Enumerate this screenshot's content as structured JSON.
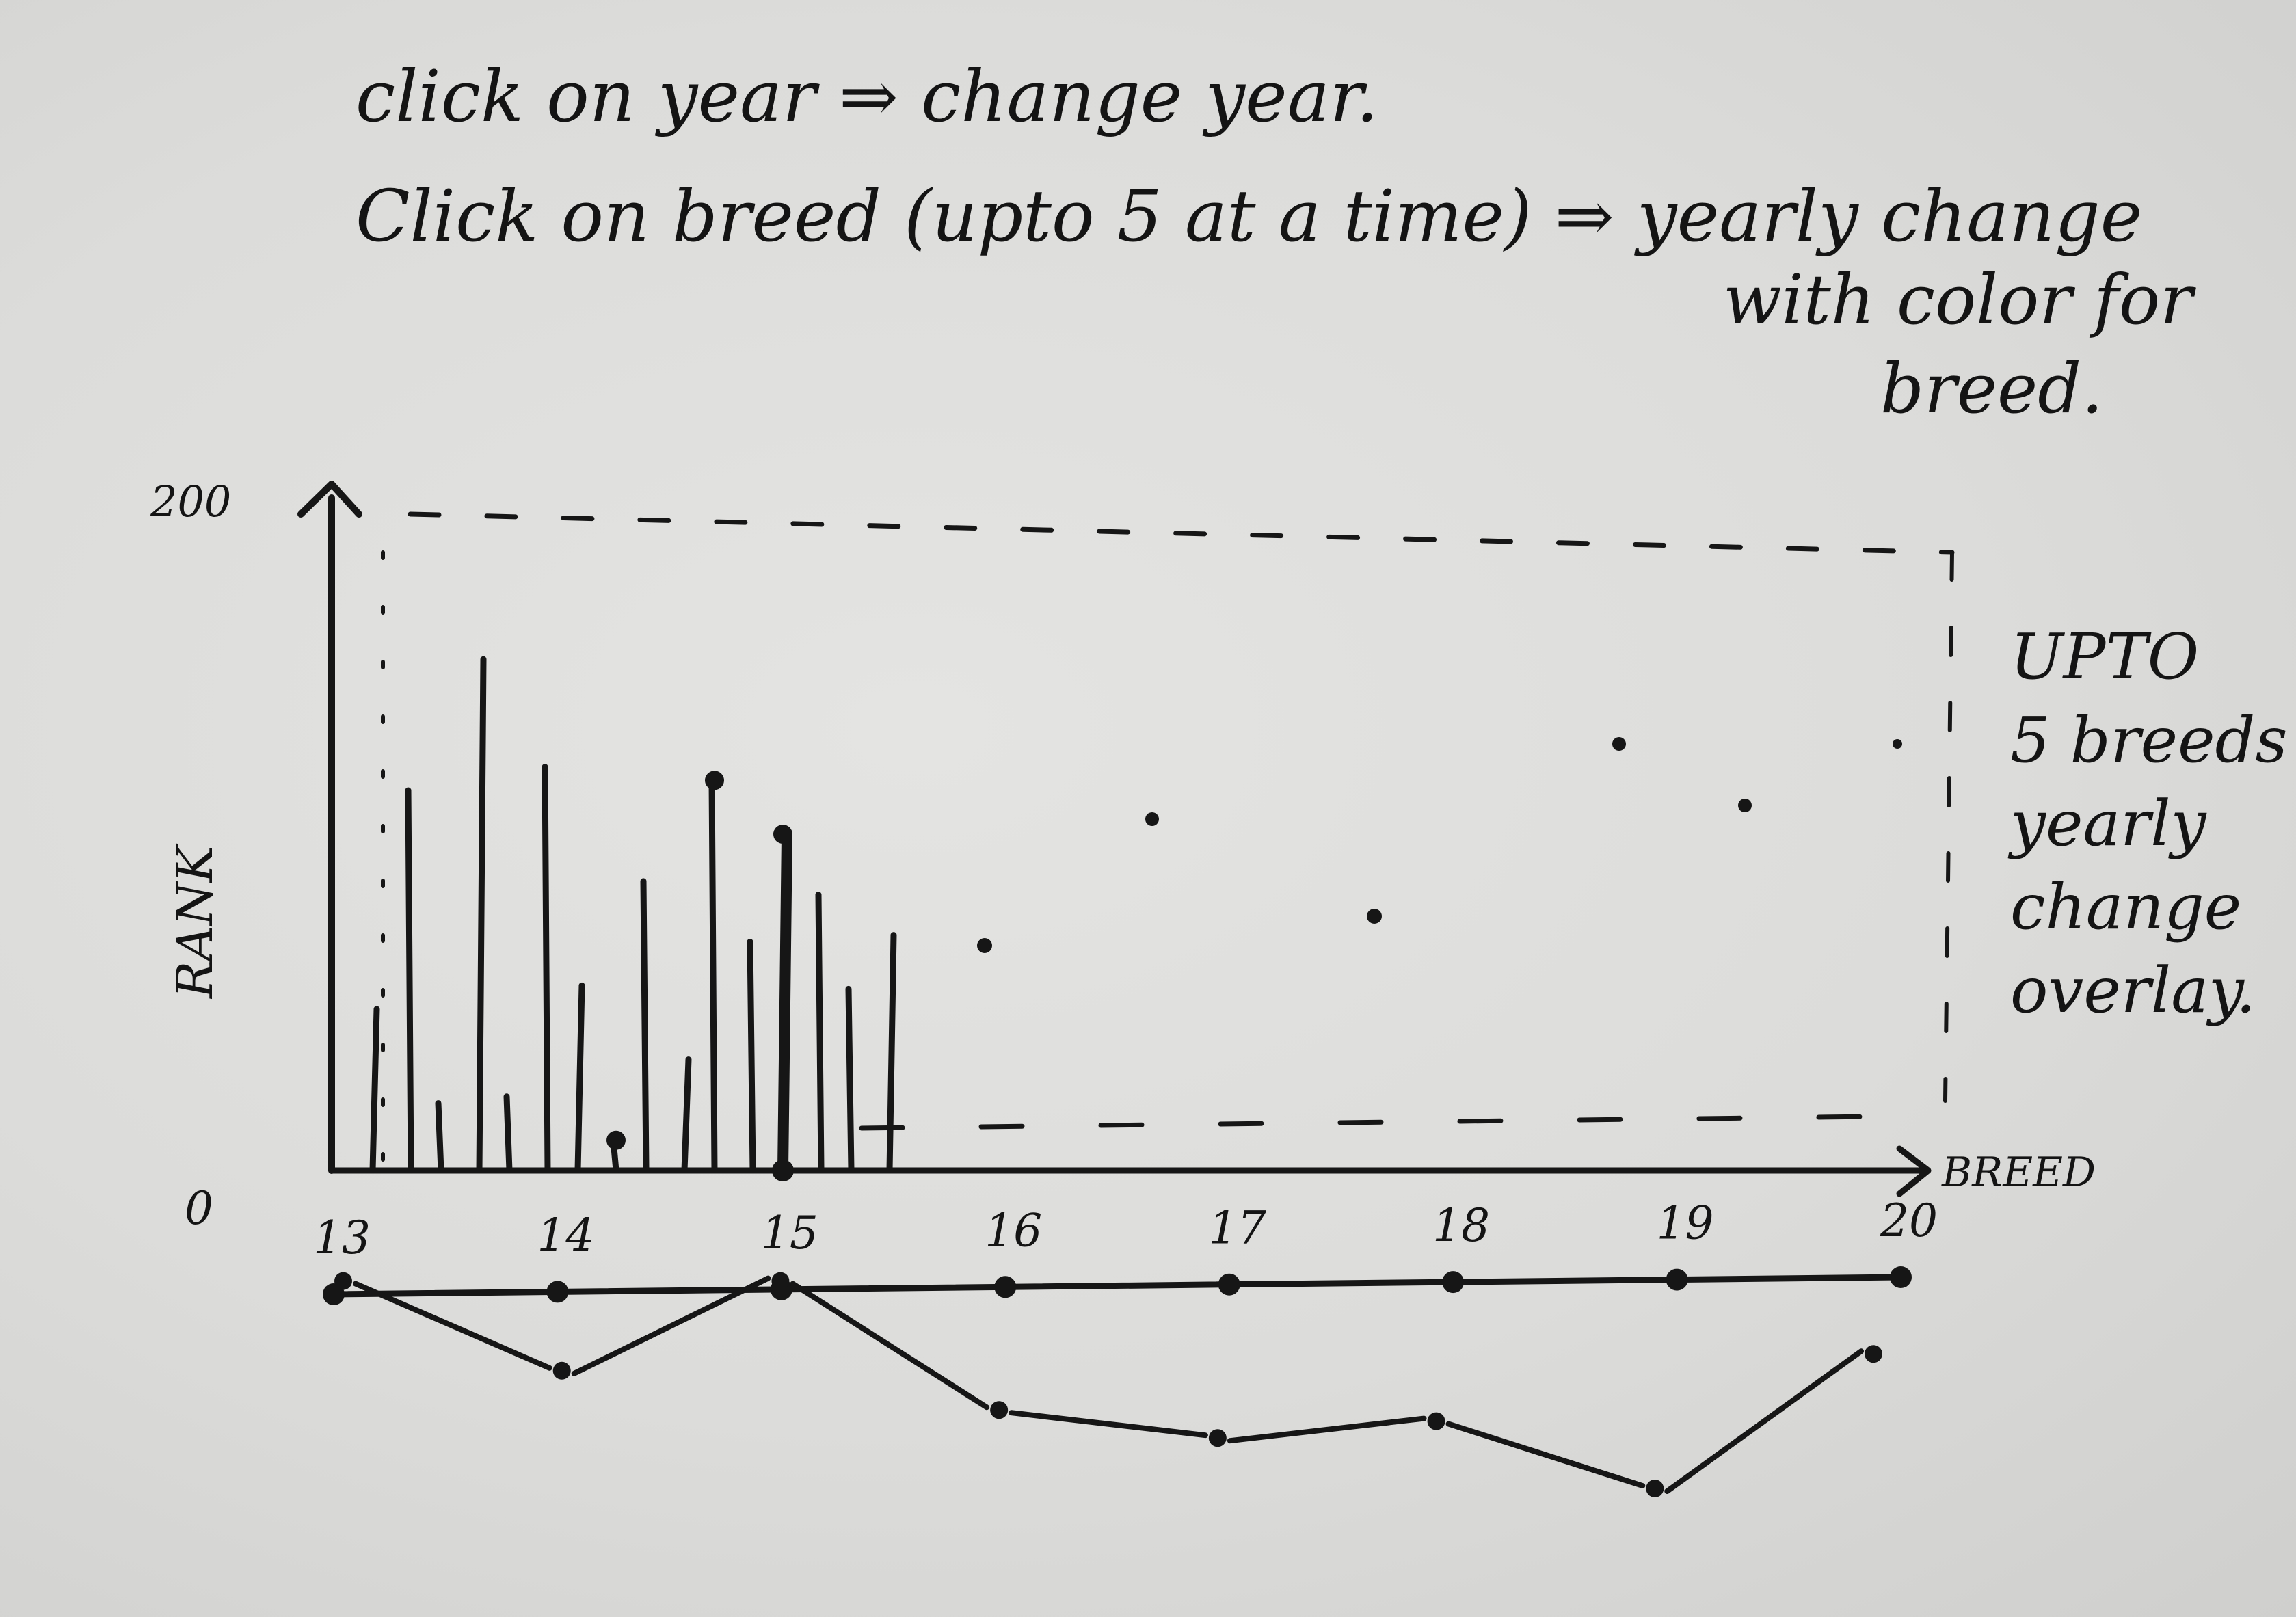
{
  "notes": {
    "line1": "click on year ⇒ change year.",
    "line2": "Click on breed (upto 5 at a time) ⇒ yearly change",
    "line3": "with color for",
    "line4": "breed."
  },
  "chart": {
    "y_label": "RANK",
    "x_label": "BREED",
    "y_ticks": [
      "200",
      "0"
    ],
    "side_note": [
      "UPTO",
      "5 breeds",
      "yearly",
      "change",
      "overlay."
    ]
  },
  "timeline": {
    "labels": [
      "13",
      "14",
      "15",
      "16",
      "17",
      "18",
      "19",
      "20"
    ]
  },
  "chart_data": {
    "type": "bar",
    "ylabel": "RANK",
    "xlabel": "BREED",
    "ylim": [
      0,
      200
    ],
    "values": [
      48,
      113,
      20,
      152,
      22,
      120,
      55,
      9,
      86,
      33,
      116,
      68,
      100,
      82,
      54,
      70
    ]
  },
  "trend_data": {
    "type": "line",
    "values": [
      52,
      36,
      52,
      29,
      24,
      27,
      15,
      39
    ]
  },
  "colors": {
    "ink": "#161616",
    "board": "#dcdcda"
  }
}
